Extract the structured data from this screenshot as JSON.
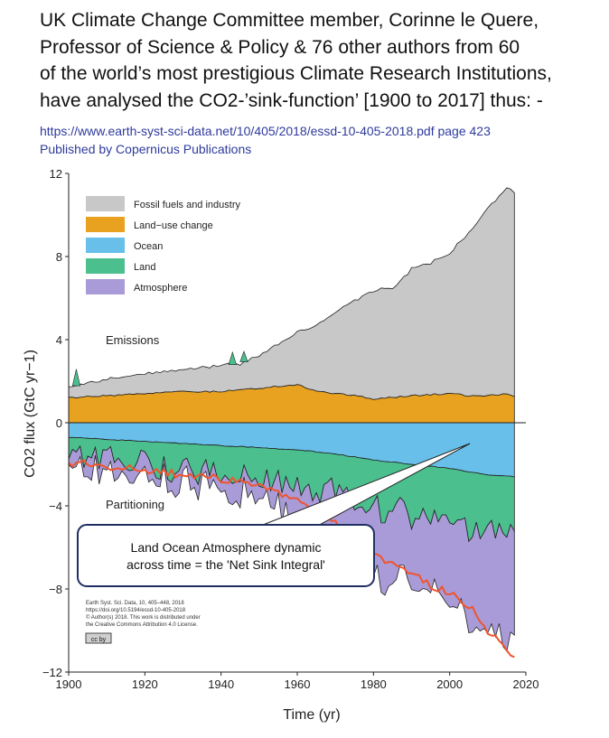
{
  "headline": [
    "UK Climate Change Committee member, Corinne le Quere,",
    "Professor of Science & Policy & 76 other authors from 60",
    "of the world’s most prestigious Climate Research Institutions,",
    "have analysed the CO2-’sink-function’ [1900 to 2017] thus: -"
  ],
  "source_link": "https://www.earth-syst-sci-data.net/10/405/2018/essd-10-405-2018.pdf page 423",
  "source_publisher": "Published by Copernicus Publications",
  "callout_lines": [
    "Land Ocean Atmosphere dynamic",
    "across time = the 'Net Sink Integral'"
  ],
  "citation_lines": [
    "Earth Syst. Sci. Data, 10, 405–448, 2018",
    "https://doi.org/10.5194/essd-10-405-2018",
    "© Author(s) 2018. This work is distributed under",
    "the Creative Commons Attribution 4.0 License."
  ],
  "license_badge": "cc by",
  "colors": {
    "fossil": "#c8c8c8",
    "landuse": "#e8a21f",
    "ocean": "#67bfea",
    "land": "#4cbf8e",
    "atmosphere": "#a99bd8",
    "budget_line": "#f0542d"
  },
  "chart_data": {
    "type": "area",
    "ylabel": "CO2 flux (GtC yr−1)",
    "xlabel": "Time (yr)",
    "xlim": [
      1900,
      2020
    ],
    "ylim": [
      -12,
      12
    ],
    "x_ticks": [
      "1900",
      "1920",
      "1940",
      "1960",
      "1980",
      "2000",
      "2020"
    ],
    "y_ticks": [
      "12",
      "8",
      "4",
      "0",
      "−4",
      "−8",
      "−12"
    ],
    "section_labels": {
      "upper": "Emissions",
      "lower": "Partitioning"
    },
    "legend_position": "top-left",
    "legend": [
      "Fossil fuels and industry",
      "Land−use change",
      "Ocean",
      "Land",
      "Atmosphere"
    ],
    "emissions": {
      "years": [
        1900,
        1910,
        1920,
        1930,
        1940,
        1945,
        1950,
        1955,
        1960,
        1965,
        1970,
        1975,
        1980,
        1985,
        1990,
        1995,
        2000,
        2005,
        2010,
        2015,
        2017
      ],
      "land_use": [
        1.2,
        1.3,
        1.4,
        1.5,
        1.5,
        1.6,
        1.65,
        1.75,
        1.85,
        1.5,
        1.4,
        1.3,
        1.15,
        1.2,
        1.3,
        1.35,
        1.4,
        1.3,
        1.3,
        1.4,
        1.3
      ],
      "fossil": [
        0.5,
        0.8,
        0.95,
        1.05,
        1.3,
        1.2,
        1.6,
        2.0,
        2.55,
        3.15,
        3.95,
        4.55,
        5.25,
        5.25,
        6.1,
        6.35,
        6.75,
        7.85,
        9.05,
        9.9,
        9.85
      ]
    },
    "sinks": {
      "years": [
        1900,
        1910,
        1920,
        1930,
        1940,
        1950,
        1960,
        1970,
        1980,
        1990,
        2000,
        2010,
        2017
      ],
      "ocean": [
        -0.7,
        -0.8,
        -0.9,
        -1.0,
        -1.1,
        -1.2,
        -1.3,
        -1.5,
        -1.8,
        -2.0,
        -2.2,
        -2.5,
        -2.6
      ],
      "land": [
        -0.8,
        -1.0,
        -1.2,
        -1.2,
        -1.3,
        -1.4,
        -1.6,
        -1.9,
        -2.2,
        -2.4,
        -2.5,
        -2.8,
        -2.7
      ],
      "atmosphere": [
        -0.6,
        -0.7,
        -0.7,
        -0.8,
        -0.8,
        -0.9,
        -1.7,
        -2.5,
        -3.4,
        -3.3,
        -3.9,
        -5.0,
        -5.1
      ]
    },
    "budget_line": {
      "years": [
        1900,
        1905,
        1910,
        1915,
        1920,
        1925,
        1930,
        1935,
        1940,
        1945,
        1950,
        1955,
        1960,
        1965,
        1970,
        1975,
        1980,
        1985,
        1990,
        1995,
        2000,
        2005,
        2010,
        2015,
        2017
      ],
      "values": [
        -2.0,
        -1.9,
        -2.1,
        -2.2,
        -2.3,
        -2.4,
        -2.5,
        -2.6,
        -2.7,
        -2.8,
        -3.1,
        -3.4,
        -3.8,
        -4.3,
        -4.8,
        -5.3,
        -6.3,
        -6.8,
        -7.2,
        -7.8,
        -8.2,
        -8.8,
        -10.0,
        -11.0,
        -11.2
      ]
    }
  }
}
